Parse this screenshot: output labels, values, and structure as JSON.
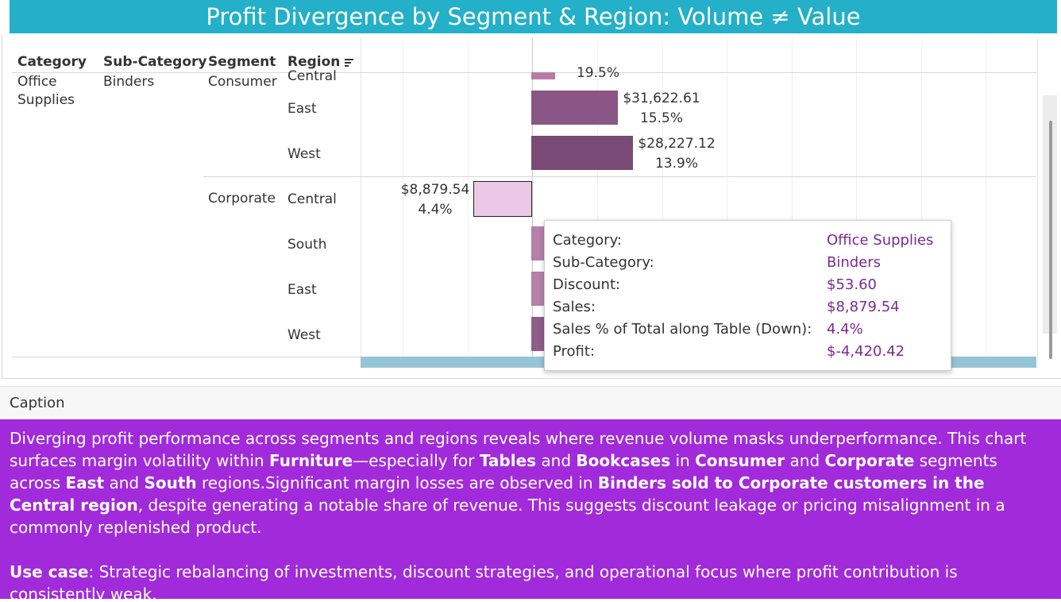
{
  "title": "Profit Divergence by Segment & Region: Volume ≠ Value",
  "headers": {
    "category": "Category",
    "subcategory": "Sub-Category",
    "segment": "Segment",
    "region": "Region",
    "sort_icon": "sort-descending-icon"
  },
  "rows": {
    "category": "Office Supplies",
    "subcategory": "Binders",
    "segment_consumer": "Consumer",
    "segment_corporate": "Corporate",
    "region_consumer_central": "Central",
    "region_consumer_east": "East",
    "region_consumer_west": "West",
    "region_corp_central": "Central",
    "region_corp_south": "South",
    "region_corp_east": "East",
    "region_corp_west": "West"
  },
  "chart_data": {
    "type": "bar",
    "orientation": "horizontal",
    "measure": "Profit",
    "label_fields": [
      "Sales",
      "Sales % of Total"
    ],
    "marks": [
      {
        "segment": "Consumer",
        "region": "Central",
        "sales_label": "",
        "pct_label": "19.5%",
        "color": "#b97aa7"
      },
      {
        "segment": "Consumer",
        "region": "East",
        "sales_label": "$31,622.61",
        "pct_label": "15.5%",
        "color": "#8a5685"
      },
      {
        "segment": "Consumer",
        "region": "West",
        "sales_label": "$28,227.12",
        "pct_label": "13.9%",
        "color": "#7a4a76"
      },
      {
        "segment": "Corporate",
        "region": "Central",
        "profit": -4420.42,
        "sales_label": "$8,879.54",
        "pct_label": "4.4%",
        "color": "#edc8e6",
        "selected": true
      },
      {
        "segment": "Corporate",
        "region": "South",
        "color": "#b580a9"
      },
      {
        "segment": "Corporate",
        "region": "East",
        "color": "#b580a9"
      },
      {
        "segment": "Corporate",
        "region": "West",
        "color": "#8e5e8a"
      }
    ]
  },
  "tooltip": {
    "rows": [
      {
        "label": "Category:",
        "value": "Office Supplies"
      },
      {
        "label": "Sub-Category:",
        "value": "Binders"
      },
      {
        "label": "Discount:",
        "value": "$53.60"
      },
      {
        "label": "Sales:",
        "value": "$8,879.54"
      },
      {
        "label": "Sales % of Total along Table (Down):",
        "value": "4.4%"
      },
      {
        "label": "Profit:",
        "value": "$-4,420.42"
      }
    ]
  },
  "caption": {
    "header": "Caption",
    "p1": {
      "t1": "Diverging profit performance across segments and regions reveals where revenue volume masks underperformance. This chart surfaces margin volatility within ",
      "b1": "Furniture",
      "t2": "—especially for ",
      "b2": "Tables",
      "t3": " and ",
      "b3": "Bookcases",
      "t4": " in ",
      "b4": "Consumer",
      "t5": " and ",
      "b5": "Corporate",
      "t6": " segments across ",
      "b6": "East",
      "t7": " and ",
      "b7": "South",
      "t8": " regions.Significant margin losses are observed in ",
      "b8": "Binders sold to Corporate customers in the Central region",
      "t9": ", despite generating a notable share of revenue. This suggests discount leakage or pricing misalignment in a commonly replenished product."
    },
    "p2": {
      "b1": "Use case",
      "t1": ": Strategic rebalancing of investments, discount strategies, and operational focus where profit contribution is consistently weak."
    }
  },
  "colors": {
    "title_bg": "#23b0c8",
    "caption_bg": "#a12adb",
    "tooltip_value": "#7b2a91",
    "axis_strip": "#94c4d6"
  }
}
